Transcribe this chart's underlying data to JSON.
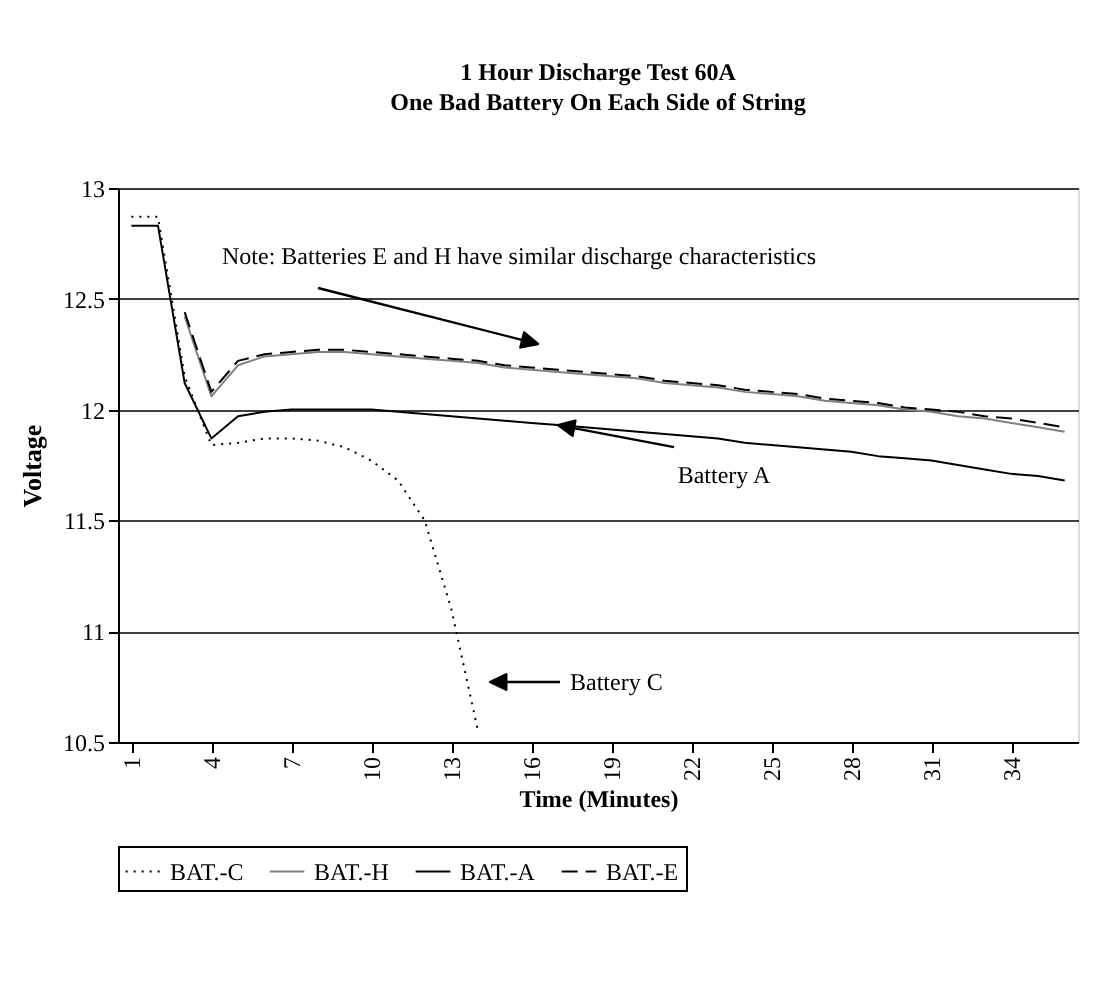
{
  "chart_data": {
    "type": "line",
    "title": "1 Hour Discharge Test 60A",
    "subtitle": "One Bad Battery On Each Side of String",
    "xlabel": "Time (Minutes)",
    "ylabel": "Voltage",
    "x": [
      1,
      2,
      3,
      4,
      5,
      6,
      7,
      8,
      9,
      10,
      11,
      12,
      13,
      14,
      15,
      16,
      17,
      18,
      19,
      20,
      21,
      22,
      23,
      24,
      25,
      26,
      27,
      28,
      29,
      30,
      31,
      32,
      33,
      34,
      35,
      36
    ],
    "xlim": [
      0.5,
      36.5
    ],
    "xticks": [
      1,
      4,
      7,
      10,
      13,
      16,
      19,
      22,
      25,
      28,
      31,
      34
    ],
    "ylim": [
      10.5,
      13
    ],
    "yticks": [
      10.5,
      {
        "value": 11,
        "label": "11"
      },
      11.5,
      {
        "value": 12,
        "label": "12"
      },
      12.5,
      {
        "value": 13,
        "label": "13"
      }
    ],
    "grid": "y",
    "legend": "bottom",
    "series": [
      {
        "name": "BAT.-C",
        "color": "#000000",
        "line_style": "dotted",
        "values": [
          12.87,
          12.87,
          12.15,
          11.84,
          11.85,
          11.87,
          11.87,
          11.86,
          11.83,
          11.77,
          11.68,
          11.5,
          11.1,
          10.55,
          null,
          null,
          null,
          null,
          null,
          null,
          null,
          null,
          null,
          null,
          null,
          null,
          null,
          null,
          null,
          null,
          null,
          null,
          null,
          null,
          null,
          null
        ]
      },
      {
        "name": "BAT.-H",
        "color": "#808080",
        "line_style": "solid",
        "values": [
          null,
          null,
          12.42,
          12.06,
          12.2,
          12.24,
          12.25,
          12.26,
          12.26,
          12.25,
          12.24,
          12.23,
          12.22,
          12.21,
          12.19,
          12.18,
          12.17,
          12.16,
          12.15,
          12.14,
          12.12,
          12.11,
          12.1,
          12.08,
          12.07,
          12.06,
          12.04,
          12.03,
          12.02,
          12.0,
          11.99,
          11.97,
          11.96,
          11.94,
          11.92,
          11.9
        ]
      },
      {
        "name": "BAT.-A",
        "color": "#000000",
        "line_style": "solid",
        "values": [
          12.83,
          12.83,
          12.12,
          11.87,
          11.97,
          11.99,
          12.0,
          12.0,
          12.0,
          12.0,
          11.99,
          11.98,
          11.97,
          11.96,
          11.95,
          11.94,
          11.93,
          11.92,
          11.91,
          11.9,
          11.89,
          11.88,
          11.87,
          11.85,
          11.84,
          11.83,
          11.82,
          11.81,
          11.79,
          11.78,
          11.77,
          11.75,
          11.73,
          11.71,
          11.7,
          11.68
        ]
      },
      {
        "name": "BAT.-E",
        "color": "#000000",
        "line_style": "dashed",
        "values": [
          null,
          null,
          12.44,
          12.08,
          12.22,
          12.25,
          12.26,
          12.27,
          12.27,
          12.26,
          12.25,
          12.24,
          12.23,
          12.22,
          12.2,
          12.19,
          12.18,
          12.17,
          12.16,
          12.15,
          12.13,
          12.12,
          12.11,
          12.09,
          12.08,
          12.07,
          12.05,
          12.04,
          12.03,
          12.01,
          12.0,
          11.99,
          11.97,
          11.96,
          11.94,
          11.92
        ]
      }
    ],
    "annotations": [
      "Note: Batteries E and H have similar discharge characteristics",
      {
        "text": "Battery A",
        "x": 17,
        "y": 11.93
      },
      "Battery C"
    ]
  }
}
